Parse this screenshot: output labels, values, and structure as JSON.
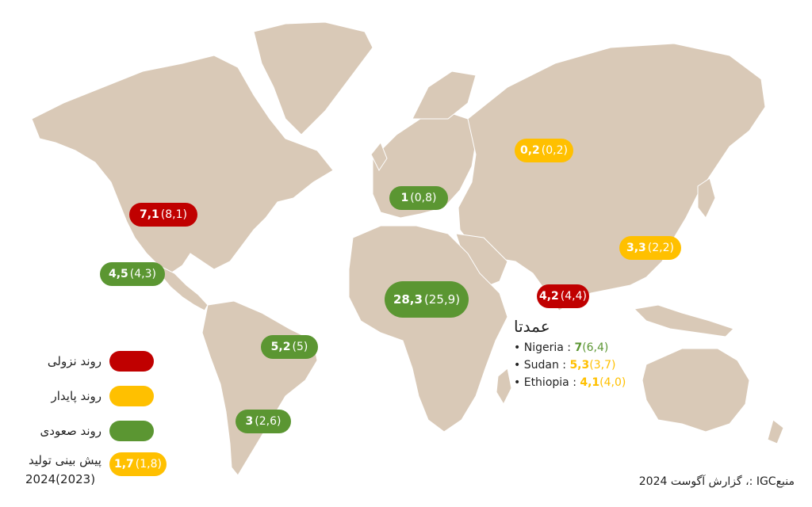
{
  "colors": {
    "land": "#d9c9b7",
    "declining": "#c00000",
    "stable": "#ffc000",
    "rising": "#5b9632"
  },
  "bubbles": [
    {
      "id": "usa",
      "value": "7,1",
      "prev": "(8,1)",
      "trend": "red"
    },
    {
      "id": "mexico",
      "value": "4,5",
      "prev": "(4,3)",
      "trend": "green"
    },
    {
      "id": "europe",
      "value": "1",
      "prev": "(0,8)",
      "trend": "green"
    },
    {
      "id": "russia",
      "value": "0,2",
      "prev": "(0,2)",
      "trend": "yellow"
    },
    {
      "id": "china",
      "value": "3,3",
      "prev": "(2,2)",
      "trend": "yellow"
    },
    {
      "id": "india",
      "value": "4,2",
      "prev": "(4,4)",
      "trend": "red"
    },
    {
      "id": "africa",
      "value": "28,3",
      "prev": "(25,9)",
      "trend": "green"
    },
    {
      "id": "brazil",
      "value": "5,2",
      "prev": "(5)",
      "trend": "green"
    },
    {
      "id": "argentina",
      "value": "3",
      "prev": "(2,6)",
      "trend": "green"
    }
  ],
  "legend": {
    "declining": "روند نزولی",
    "stable": "روند پایدار",
    "rising": "روند صعودی",
    "forecast_label": "پیش بینی تولید",
    "forecast_years": "2024(2023)",
    "sample_value": "1,7",
    "sample_prev": "(1,8)"
  },
  "note": {
    "title": "عمدتا",
    "items": [
      {
        "country": "Nigeria :",
        "value": "7",
        "prev": "(6,4)"
      },
      {
        "country": "Sudan :",
        "value": "5,3",
        "prev": "(3,7)"
      },
      {
        "country": "Ethiopia :",
        "value": "4,1",
        "prev": "(4,0)"
      }
    ]
  },
  "source": "منبعIGC :، گزارش آگوست 2024"
}
